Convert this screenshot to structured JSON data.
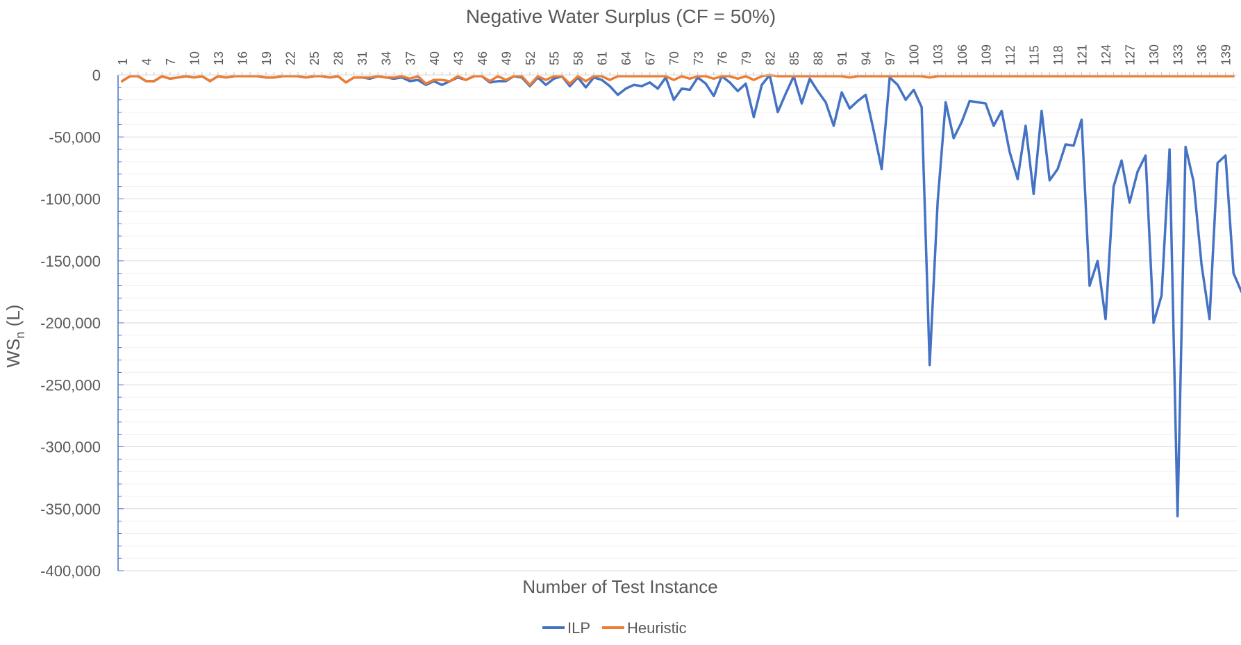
{
  "chart_data": {
    "type": "line",
    "title": "Negative Water Surplus (CF = 50%)",
    "xlabel": "Number of Test Instance",
    "ylabel_main": "WS",
    "ylabel_sub": "n",
    "ylabel_unit": " (L)",
    "ylim": [
      -400000,
      0
    ],
    "y_ticks": [
      0,
      -50000,
      -100000,
      -150000,
      -200000,
      -250000,
      -300000,
      -350000,
      -400000
    ],
    "y_tick_labels": [
      "0",
      "-50,000",
      "-100,000",
      "-150,000",
      "-200,000",
      "-250,000",
      "-300,000",
      "-350,000",
      "-400,000"
    ],
    "x_count": 140,
    "x_tick_labels": [
      "1",
      "4",
      "7",
      "10",
      "13",
      "16",
      "19",
      "22",
      "25",
      "28",
      "31",
      "34",
      "37",
      "40",
      "43",
      "46",
      "49",
      "52",
      "55",
      "58",
      "61",
      "64",
      "67",
      "70",
      "73",
      "76",
      "79",
      "82",
      "85",
      "88",
      "91",
      "94",
      "97",
      "100",
      "103",
      "106",
      "109",
      "112",
      "115",
      "118",
      "121",
      "124",
      "127",
      "130",
      "133",
      "136",
      "139"
    ],
    "grid": true,
    "legend_position": "bottom",
    "series": [
      {
        "name": "ILP",
        "color": "#4472C4",
        "values": [
          -5000,
          -1000,
          -1000,
          -5000,
          -5000,
          -1000,
          -3000,
          -2000,
          -1000,
          -2000,
          -1000,
          -5000,
          -1000,
          -2000,
          -1000,
          -1000,
          -1000,
          -1000,
          -2000,
          -2000,
          -1000,
          -1000,
          -1000,
          -2000,
          -1000,
          -1000,
          -2000,
          -1000,
          -6000,
          -2000,
          -2000,
          -3000,
          -1000,
          -2000,
          -3000,
          -2000,
          -5000,
          -4000,
          -8000,
          -5000,
          -8000,
          -5000,
          -2000,
          -4000,
          -1000,
          -1000,
          -6000,
          -5000,
          -5000,
          -1000,
          -2000,
          -9000,
          -2000,
          -8000,
          -3000,
          -1000,
          -9000,
          -2000,
          -10000,
          -2000,
          -4000,
          -9000,
          -16000,
          -11000,
          -8000,
          -9000,
          -6000,
          -11000,
          -2000,
          -20000,
          -11000,
          -12000,
          -2000,
          -7000,
          -17000,
          -1000,
          -6000,
          -13000,
          -7000,
          -34000,
          -8000,
          0,
          -30000,
          -15000,
          -1000,
          -23000,
          -3000,
          -13000,
          -22000,
          -41000,
          -14000,
          -27000,
          -21000,
          -16000,
          -45000,
          -76000,
          -2000,
          -8000,
          -20000,
          -12000,
          -26000,
          -234000,
          -102000,
          -22000,
          -51000,
          -38000,
          -21000,
          -22000,
          -23000,
          -41000,
          -29000,
          -62000,
          -84000,
          -41000,
          -96000,
          -29000,
          -85000,
          -76000,
          -56000,
          -57000,
          -36000,
          -170000,
          -150000,
          -197000,
          -90000,
          -69000,
          -103000,
          -78000,
          -65000,
          -200000,
          -178000,
          -60000,
          -356000,
          -58000,
          -86000,
          -153000,
          -197000,
          -71000,
          -65000,
          -160000,
          -175000
        ]
      },
      {
        "name": "Heuristic",
        "color": "#ED7D31",
        "values": [
          -5000,
          -1000,
          -1000,
          -5000,
          -5000,
          -1000,
          -3000,
          -2000,
          -1000,
          -2000,
          -1000,
          -5000,
          -1000,
          -2000,
          -1000,
          -1000,
          -1000,
          -1000,
          -2000,
          -2000,
          -1000,
          -1000,
          -1000,
          -2000,
          -1000,
          -1000,
          -2000,
          -1000,
          -6000,
          -2000,
          -2000,
          -2000,
          -1000,
          -2000,
          -2000,
          -1000,
          -3000,
          -1000,
          -7000,
          -4000,
          -4000,
          -5000,
          -1000,
          -4000,
          -1000,
          -1000,
          -5000,
          -1000,
          -4000,
          -1000,
          -1000,
          -8000,
          -1000,
          -4000,
          -1000,
          -1000,
          -7000,
          -1000,
          -5000,
          -1000,
          -1000,
          -4000,
          -1000,
          -1000,
          -1000,
          -1000,
          -1000,
          -1000,
          -1000,
          -4000,
          -1000,
          -3000,
          -1000,
          -1000,
          -3000,
          -1000,
          -1000,
          -3000,
          -1000,
          -4000,
          -1000,
          0,
          -1000,
          -1000,
          -1000,
          -1000,
          -1000,
          -1000,
          -1000,
          -1000,
          -1000,
          -2000,
          -1000,
          -1000,
          -1000,
          -1000,
          -1000,
          -1000,
          -1000,
          -1000,
          -1000,
          -2000,
          -1000,
          -1000,
          -1000,
          -1000,
          -1000,
          -1000,
          -1000,
          -1000,
          -1000,
          -1000,
          -1000,
          -1000,
          -1000,
          -1000,
          -1000,
          -1000,
          -1000,
          -1000,
          -1000,
          -1000,
          -1000,
          -1000,
          -1000,
          -1000,
          -1000,
          -1000,
          -1000,
          -1000,
          -1000,
          -1000,
          -1000,
          -1000,
          -1000,
          -1000,
          -1000,
          -1000,
          -1000,
          -1000
        ]
      }
    ]
  }
}
